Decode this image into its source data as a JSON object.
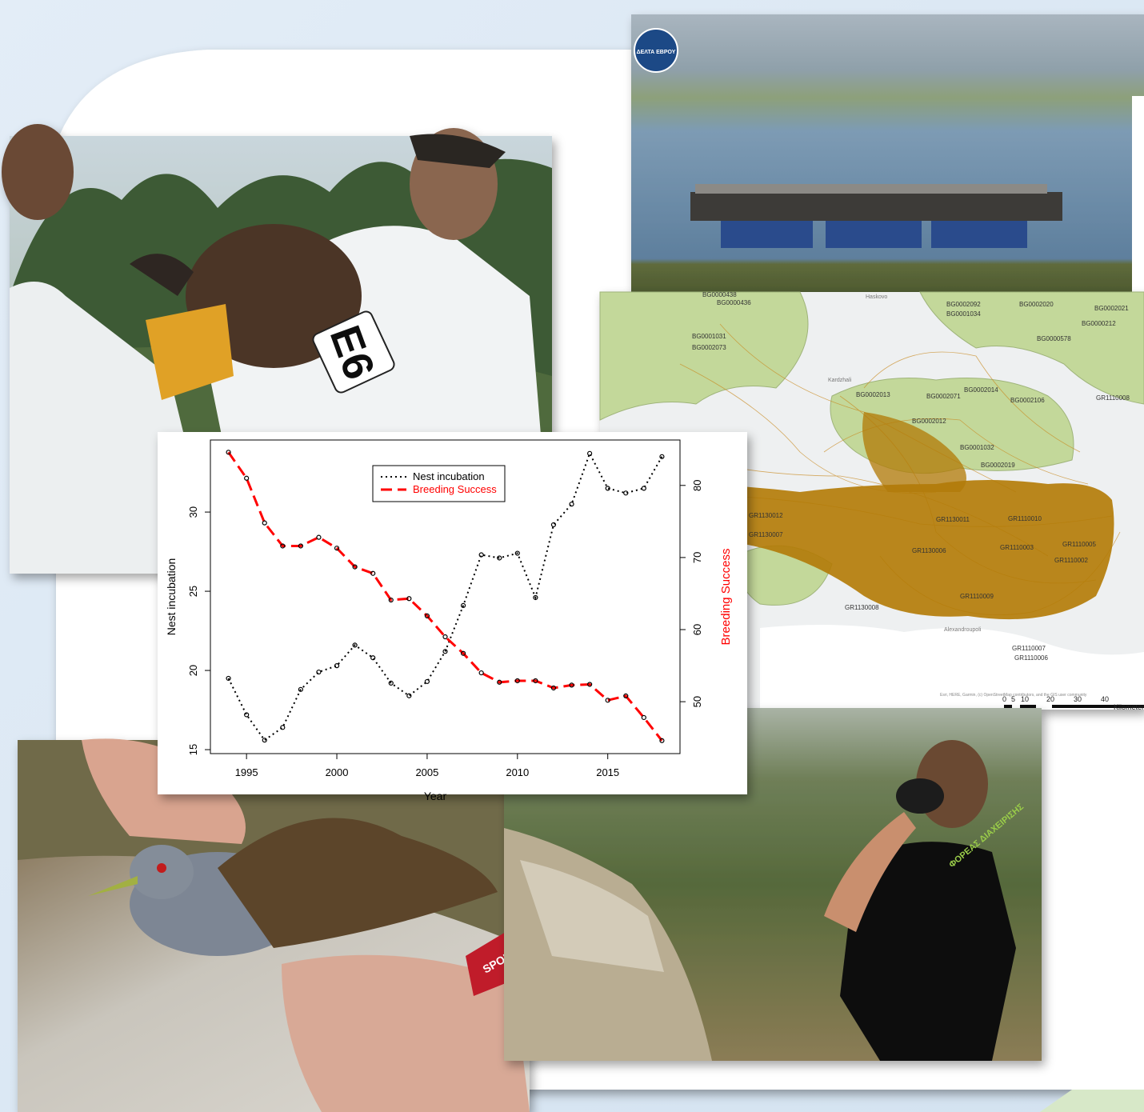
{
  "logo": "ΔΕΛΤΑ ΕΒΡΟΥ",
  "vulture_tag": "E6",
  "glove_text": "SPORT",
  "shirt_text": "ΦΟΡΕΑΣ ΔΙΑΧΕΙΡΙΣΗΣ",
  "map": {
    "labels": [
      "BG0000438",
      "BG0000436",
      "BG0001031",
      "BG0002073",
      "BG0002092",
      "BG0001034",
      "BG0002020",
      "BG0002021",
      "BG0000212",
      "BG0000578",
      "BG0002013",
      "BG0002071",
      "BG0002014",
      "BG0002106",
      "BG0002012",
      "BG0001032",
      "BG0002019",
      "GR1110008",
      "GR1130012",
      "GR1130007",
      "GR1130011",
      "GR1110010",
      "GR1130006",
      "GR1110003",
      "GR1110005",
      "GR1110002",
      "GR1110009",
      "GR1130008",
      "GR1110007",
      "GR1110006"
    ],
    "places": [
      "Haskovo",
      "Kardzhali",
      "Alexandroupoli"
    ],
    "attribution": "Esri, HERE, Garmin, (c) OpenStreetMap contributors, and the GIS user community",
    "scale_labels": [
      "0",
      "5",
      "10",
      "20",
      "30",
      "40",
      "Kilometers"
    ]
  },
  "chart_data": {
    "type": "line",
    "x": [
      1994,
      1995,
      1996,
      1997,
      1998,
      1999,
      2000,
      2001,
      2002,
      2003,
      2004,
      2005,
      2006,
      2007,
      2008,
      2009,
      2010,
      2011,
      2012,
      2013,
      2014,
      2015,
      2016,
      2017,
      2018
    ],
    "xlim": [
      1993,
      2019
    ],
    "xticks": [
      1995,
      2000,
      2005,
      2010,
      2015
    ],
    "ylim": [
      14.75,
      34.55
    ],
    "yticks": [
      15,
      20,
      25,
      30
    ],
    "y2lim": [
      42.8,
      86.3
    ],
    "y2ticks": [
      50,
      60,
      70,
      80
    ],
    "xlabel": "Year",
    "ylabel": "Nest incubation",
    "y2label": "Breeding Success",
    "legend": "top",
    "series": [
      {
        "name": "Nest incubation",
        "color": "#000000",
        "style": "dotted",
        "values": [
          19.5,
          17.2,
          15.6,
          16.4,
          18.8,
          19.9,
          20.3,
          21.6,
          20.8,
          19.2,
          18.4,
          19.3,
          21.2,
          24.1,
          27.3,
          27.1,
          27.4,
          24.6,
          29.2,
          30.5,
          33.7,
          31.5,
          31.2,
          31.5,
          33.5
        ]
      },
      {
        "name": "Breeding Success",
        "color": "#ff0000",
        "style": "dashed",
        "axis": "y2",
        "values": [
          84.6,
          81.0,
          74.8,
          71.6,
          71.6,
          72.8,
          71.3,
          68.7,
          67.8,
          64.1,
          64.3,
          61.9,
          59.0,
          56.7,
          54.0,
          52.7,
          52.9,
          52.9,
          51.9,
          52.3,
          52.4,
          50.2,
          50.8,
          47.8,
          44.6
        ]
      }
    ]
  }
}
